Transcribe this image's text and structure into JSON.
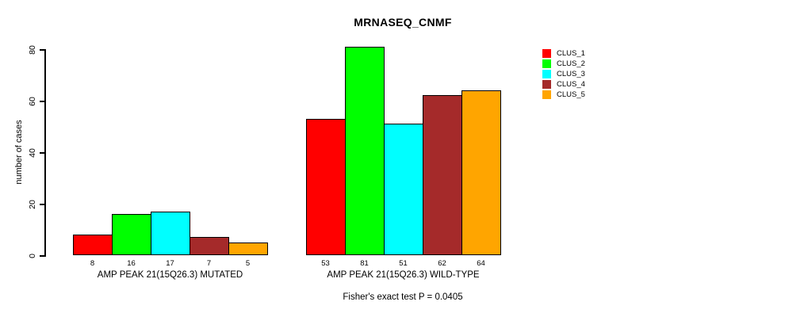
{
  "chart_data": {
    "type": "bar",
    "title": "MRNASEQ_CNMF",
    "ylabel": "number of cases",
    "subtitle": "Fisher's exact test P = 0.0405",
    "yticks": [
      0,
      20,
      40,
      60,
      80
    ],
    "ylim": [
      0,
      81
    ],
    "grid": false,
    "legend_position": "top-right",
    "bar_value_labels_shown": true,
    "clusters": [
      {
        "name": "CLUS_1",
        "color": "#FF0000"
      },
      {
        "name": "CLUS_2",
        "color": "#00FF00"
      },
      {
        "name": "CLUS_3",
        "color": "#00FFFF"
      },
      {
        "name": "CLUS_4",
        "color": "#A52A2A"
      },
      {
        "name": "CLUS_5",
        "color": "#FFA500"
      }
    ],
    "groups": [
      {
        "label": "AMP PEAK 21(15Q26.3) MUTATED",
        "values": [
          8,
          16,
          17,
          7,
          5
        ]
      },
      {
        "label": "AMP PEAK 21(15Q26.3) WILD-TYPE",
        "values": [
          53,
          81,
          51,
          62,
          64
        ]
      }
    ]
  }
}
